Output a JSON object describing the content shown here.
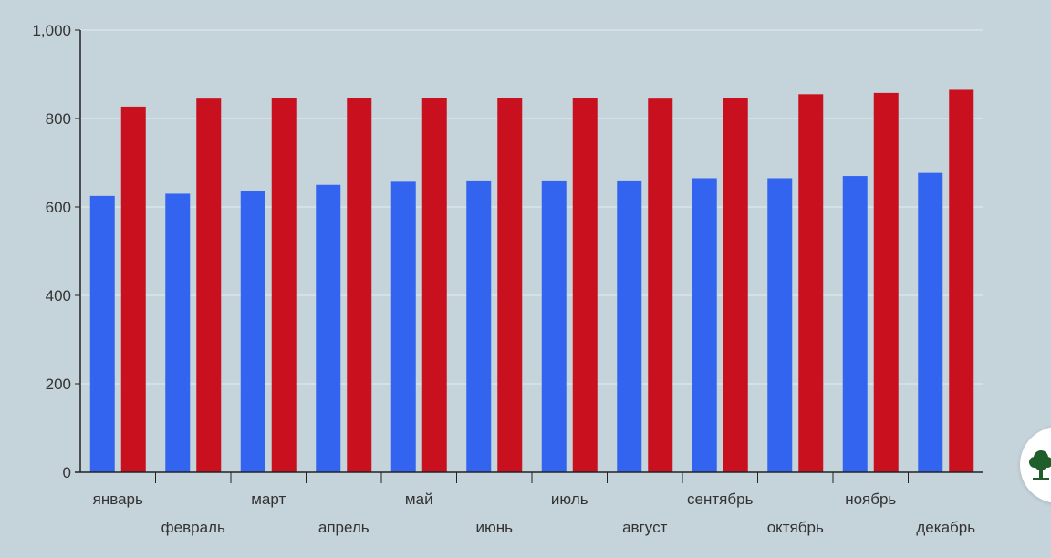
{
  "chart_data": {
    "type": "bar",
    "categories": [
      "январь",
      "февраль",
      "март",
      "апрель",
      "май",
      "июнь",
      "июль",
      "август",
      "сентябрь",
      "октябрь",
      "ноябрь",
      "декабрь"
    ],
    "series": [
      {
        "values": [
          625,
          630,
          637,
          650,
          657,
          660,
          660,
          660,
          665,
          665,
          670,
          677
        ],
        "color": "#3264f0"
      },
      {
        "values": [
          827,
          845,
          847,
          847,
          847,
          847,
          847,
          845,
          847,
          855,
          858,
          865
        ],
        "color": "#c8101e"
      }
    ],
    "y_ticks": [
      "0",
      "200",
      "400",
      "600",
      "800",
      "1,000"
    ],
    "ylim": [
      0,
      1000
    ],
    "title": "",
    "xlabel": "",
    "ylabel": "",
    "grid": true,
    "legend": "none",
    "colors": {
      "background": "#c5d3da",
      "gridline": "#e4ecef",
      "axis": "#222222",
      "label": "#333333"
    }
  },
  "badge": {
    "icon": "tree-icon",
    "color": "#1f5e2a"
  }
}
